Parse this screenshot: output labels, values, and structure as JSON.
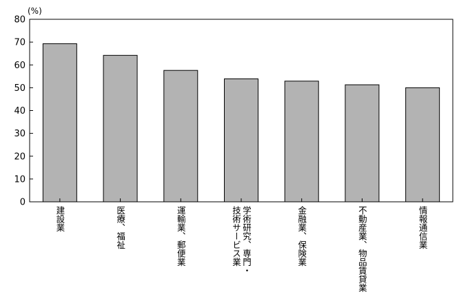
{
  "chart_data": {
    "type": "bar",
    "unit_label": "(%)",
    "categories": [
      [
        "建設業"
      ],
      [
        "医療、福祉"
      ],
      [
        "運輸業、郵便業"
      ],
      [
        "学術研究、専門・",
        "技術サービス業"
      ],
      [
        "金融業、保険業"
      ],
      [
        "不動産業、物品賃貸業"
      ],
      [
        "情報通信業"
      ]
    ],
    "values": [
      69.3,
      64.2,
      57.6,
      53.9,
      52.9,
      51.3,
      50.0
    ],
    "ylim": [
      0,
      80
    ],
    "yticks": [
      0,
      10,
      20,
      30,
      40,
      50,
      60,
      70,
      80
    ],
    "grid": false,
    "bar_color": "#b3b3b3",
    "bar_edge_color": "#000000"
  }
}
